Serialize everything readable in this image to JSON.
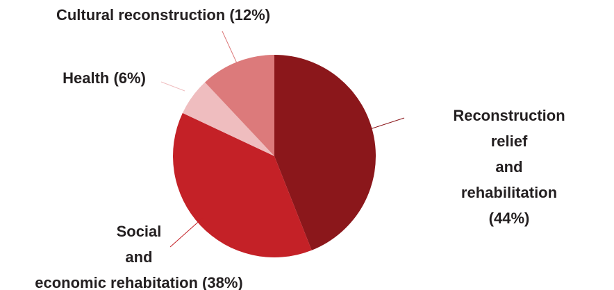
{
  "chart_data": {
    "type": "pie",
    "categories": [
      "Reconstruction relief\nand\nrehabilitation (44%)",
      "Social\nand\neconomic rehabitation (38%)",
      "Health (6%)",
      "Cultural reconstruction (12%)"
    ],
    "values": [
      44,
      38,
      6,
      12
    ],
    "colors": [
      "#8b171b",
      "#c42127",
      "#efbdbf",
      "#dc7a7b"
    ]
  }
}
